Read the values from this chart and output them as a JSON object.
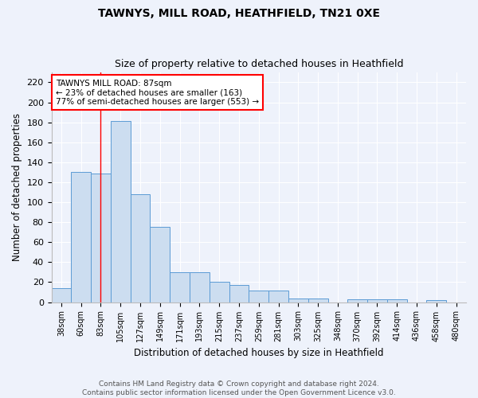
{
  "title": "TAWNYS, MILL ROAD, HEATHFIELD, TN21 0XE",
  "subtitle": "Size of property relative to detached houses in Heathfield",
  "xlabel": "Distribution of detached houses by size in Heathfield",
  "ylabel": "Number of detached properties",
  "categories": [
    "38sqm",
    "60sqm",
    "83sqm",
    "105sqm",
    "127sqm",
    "149sqm",
    "171sqm",
    "193sqm",
    "215sqm",
    "237sqm",
    "259sqm",
    "281sqm",
    "303sqm",
    "325sqm",
    "348sqm",
    "370sqm",
    "392sqm",
    "414sqm",
    "436sqm",
    "458sqm",
    "480sqm"
  ],
  "values": [
    14,
    130,
    129,
    181,
    108,
    75,
    30,
    30,
    20,
    17,
    12,
    12,
    4,
    4,
    0,
    3,
    3,
    3,
    0,
    2,
    0
  ],
  "bar_color": "#ccddf0",
  "bar_edge_color": "#5b9bd5",
  "background_color": "#eef2fb",
  "grid_color": "#ffffff",
  "ylim": [
    0,
    230
  ],
  "yticks": [
    0,
    20,
    40,
    60,
    80,
    100,
    120,
    140,
    160,
    180,
    200,
    220
  ],
  "red_line_x": 2.0,
  "annotation_text_line1": "TAWNYS MILL ROAD: 87sqm",
  "annotation_text_line2": "← 23% of detached houses are smaller (163)",
  "annotation_text_line3": "77% of semi-detached houses are larger (553) →",
  "footer_line1": "Contains HM Land Registry data © Crown copyright and database right 2024.",
  "footer_line2": "Contains public sector information licensed under the Open Government Licence v3.0."
}
